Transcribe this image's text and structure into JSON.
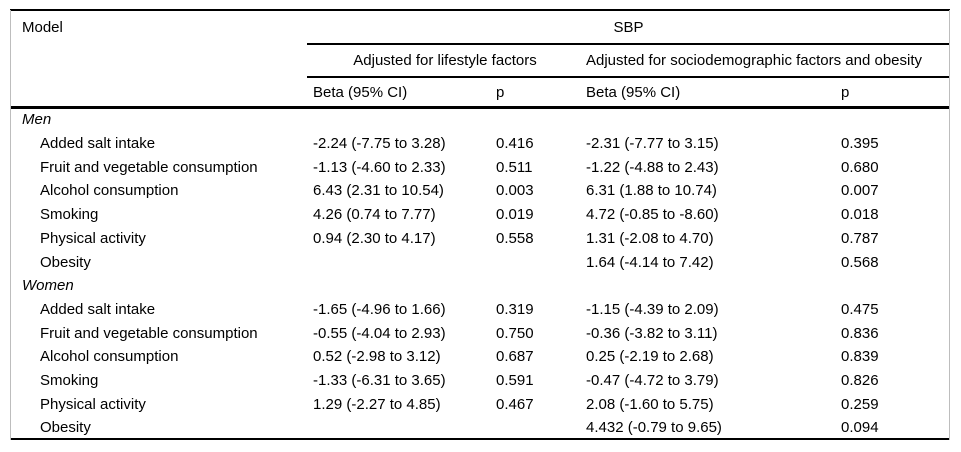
{
  "table": {
    "corner_header": "Model",
    "group_header": "SBP",
    "spanners": [
      "Adjusted for lifestyle factors",
      "Adjusted for sociodemographic factors and obesity"
    ],
    "columns": [
      "Beta (95% CI)",
      "p",
      "Beta (95% CI)",
      "p"
    ],
    "sections": [
      {
        "label": "Men",
        "rows": [
          {
            "label": "Added salt intake",
            "cells": [
              "-2.24 (-7.75 to 3.28)",
              "0.416",
              "-2.31 (-7.77 to 3.15)",
              "0.395"
            ]
          },
          {
            "label": "Fruit and vegetable consumption",
            "cells": [
              "-1.13 (-4.60 to 2.33)",
              "0.511",
              "-1.22 (-4.88 to 2.43)",
              "0.680"
            ]
          },
          {
            "label": "Alcohol consumption",
            "cells": [
              "6.43 (2.31 to 10.54)",
              "0.003",
              "6.31 (1.88 to 10.74)",
              "0.007"
            ]
          },
          {
            "label": "Smoking",
            "cells": [
              "4.26 (0.74 to 7.77)",
              "0.019",
              "4.72 (-0.85 to -8.60)",
              "0.018"
            ]
          },
          {
            "label": "Physical activity",
            "cells": [
              "0.94 (2.30 to 4.17)",
              "0.558",
              "1.31 (-2.08 to 4.70)",
              "0.787"
            ]
          },
          {
            "label": "Obesity",
            "cells": [
              "",
              "",
              "1.64 (-4.14 to 7.42)",
              "0.568"
            ]
          }
        ]
      },
      {
        "label": "Women",
        "rows": [
          {
            "label": "Added salt intake",
            "cells": [
              "-1.65 (-4.96 to 1.66)",
              "0.319",
              "-1.15 (-4.39 to 2.09)",
              "0.475"
            ]
          },
          {
            "label": "Fruit and vegetable consumption",
            "cells": [
              "-0.55 (-4.04 to 2.93)",
              "0.750",
              "-0.36 (-3.82 to 3.11)",
              "0.836"
            ]
          },
          {
            "label": "Alcohol consumption",
            "cells": [
              "0.52 (-2.98 to 3.12)",
              "0.687",
              "0.25 (-2.19 to 2.68)",
              "0.839"
            ]
          },
          {
            "label": "Smoking",
            "cells": [
              "-1.33 (-6.31 to 3.65)",
              "0.591",
              "-0.47 (-4.72 to 3.79)",
              "0.826"
            ]
          },
          {
            "label": "Physical activity",
            "cells": [
              "1.29 (-2.27 to 4.85)",
              "0.467",
              "2.08 (-1.60 to 5.75)",
              "0.259"
            ]
          },
          {
            "label": "Obesity",
            "cells": [
              "",
              "",
              "4.432 (-0.79 to 9.65)",
              "0.094"
            ]
          }
        ]
      }
    ],
    "colors": {
      "rule": "#000000",
      "edge_line": "#bdbdbd",
      "text": "#000000",
      "background": "#ffffff"
    }
  }
}
